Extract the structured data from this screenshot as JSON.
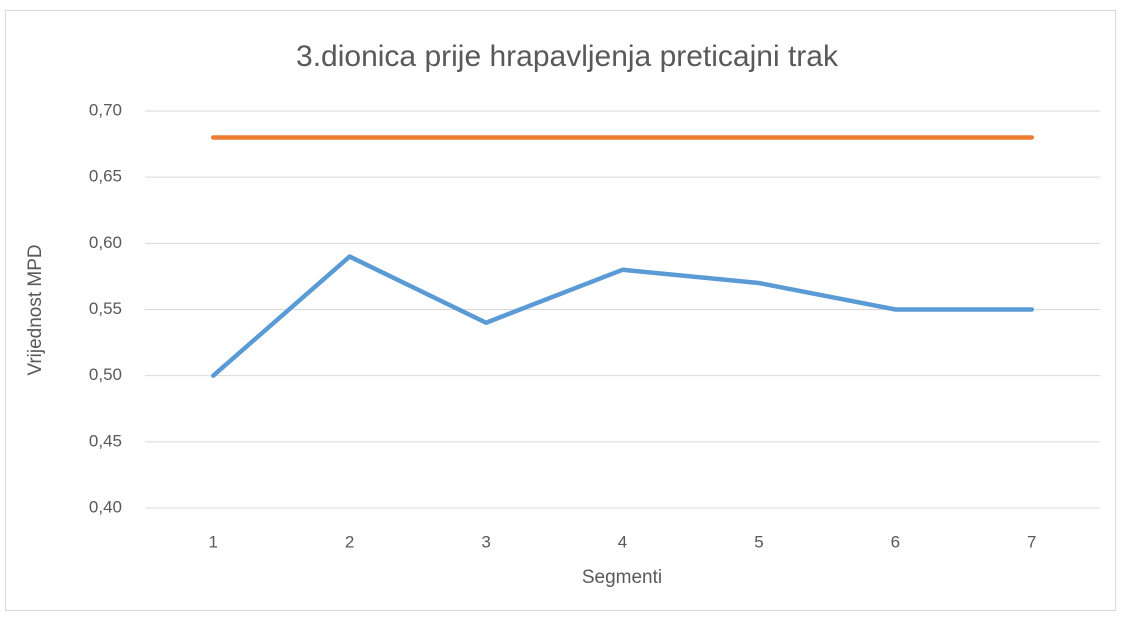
{
  "chart_data": {
    "type": "line",
    "title": "3.dionica prije hrapavljenja preticajni trak",
    "x_label": "Segmenti",
    "y_label": "Vrijednost MPD",
    "categories": [
      "1",
      "2",
      "3",
      "4",
      "5",
      "6",
      "7"
    ],
    "series": [
      {
        "color": "#ed7d31",
        "values": [
          0.68,
          0.68,
          0.68,
          0.68,
          0.68,
          0.68,
          0.68
        ]
      },
      {
        "color": "#5b9bd5",
        "values": [
          0.5,
          0.59,
          0.54,
          0.58,
          0.57,
          0.55,
          0.55
        ]
      }
    ],
    "ylim": [
      0.4,
      0.7
    ],
    "yticks": [
      {
        "value": 0.4,
        "label": "0,40"
      },
      {
        "value": 0.45,
        "label": "0,45"
      },
      {
        "value": 0.5,
        "label": "0,50"
      },
      {
        "value": 0.55,
        "label": "0,55"
      },
      {
        "value": 0.6,
        "label": "0,60"
      },
      {
        "value": 0.65,
        "label": "0,65"
      },
      {
        "value": 0.7,
        "label": "0,70"
      }
    ],
    "grid": true
  }
}
